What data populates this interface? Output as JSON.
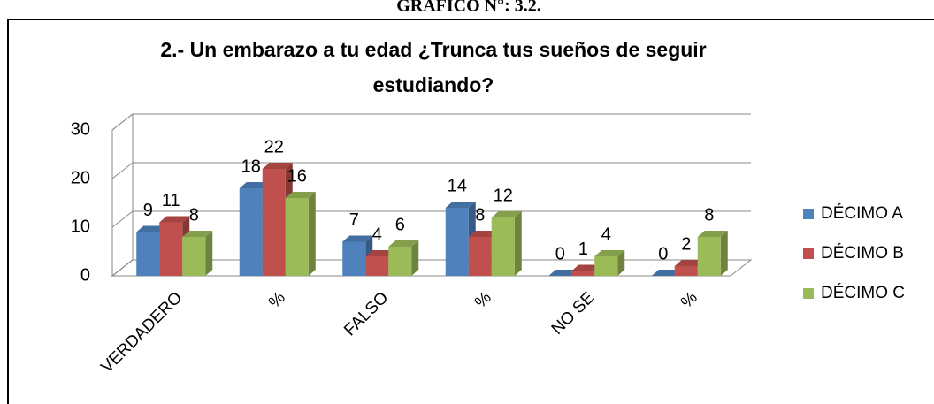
{
  "header": "GRÁFICO N°: 3.2.",
  "chart_data": {
    "type": "bar3d",
    "title": "2.- Un embarazo a tu edad ¿Trunca tus sueños de seguir estudiando?",
    "categories": [
      "VERDADERO",
      "%",
      "FALSO",
      "%",
      "NO SE",
      "%"
    ],
    "series": [
      {
        "name": "DÉCIMO A",
        "color": "#4f81bd",
        "values": [
          9,
          18,
          7,
          14,
          0,
          0
        ]
      },
      {
        "name": "DÉCIMO B",
        "color": "#c0504d",
        "values": [
          11,
          22,
          4,
          8,
          1,
          2
        ]
      },
      {
        "name": "DÉCIMO C",
        "color": "#9bbb59",
        "values": [
          8,
          16,
          6,
          12,
          4,
          8
        ]
      }
    ],
    "ylim": [
      0,
      30
    ],
    "yticks": [
      0,
      10,
      20,
      30
    ],
    "grid": true,
    "legend": "right"
  }
}
